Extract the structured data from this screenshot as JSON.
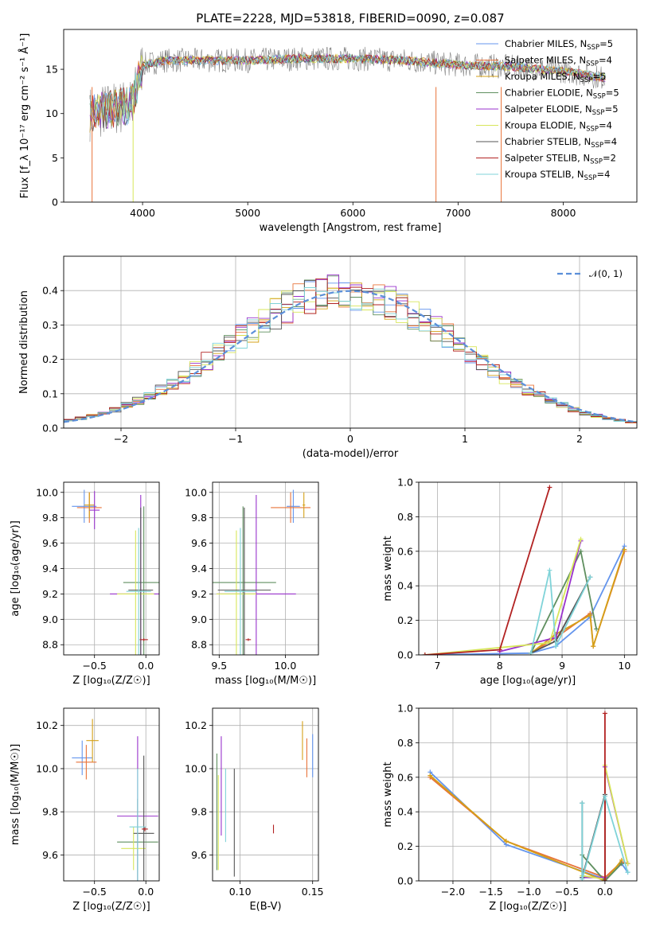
{
  "title": "PLATE=2228, MJD=53818, FIBERID=0090, z=0.087",
  "colors": {
    "Chabrier MILES": "#6495ed",
    "Salpeter MILES": "#e8733a",
    "Kroupa MILES": "#d4a017",
    "Chabrier ELODIE": "#5f8f5f",
    "Salpeter ELODIE": "#9932cc",
    "Kroupa ELODIE": "#d7e65a",
    "Chabrier STELIB": "#555555",
    "Salpeter STELIB": "#b22222",
    "Kroupa STELIB": "#7fd3d8",
    "observed": "#808080",
    "normal": "#5b8fd9"
  },
  "chart_data": [
    {
      "id": "spectrum",
      "type": "line",
      "title": "PLATE=2228, MJD=53818, FIBERID=0090, z=0.087",
      "xlabel": "wavelength [Angstrom, rest frame]",
      "ylabel": "Flux [f_λ 10⁻¹⁷ erg cm⁻² s⁻¹ Å⁻¹]",
      "xlim": [
        3250,
        8700
      ],
      "ylim": [
        0,
        19.5
      ],
      "xticks": [
        4000,
        5000,
        6000,
        7000,
        8000
      ],
      "yticks": [
        0,
        5,
        10,
        15
      ],
      "legend_position": "top-right",
      "legend": [
        {
          "base": "Chabrier MILES, N",
          "sub": "SSP",
          "tail": "=5"
        },
        {
          "base": "Salpeter MILES, N",
          "sub": "SSP",
          "tail": "=4"
        },
        {
          "base": "Kroupa MILES, N",
          "sub": "SSP",
          "tail": "=5"
        },
        {
          "base": "Chabrier ELODIE, N",
          "sub": "SSP",
          "tail": "=5"
        },
        {
          "base": "Salpeter ELODIE, N",
          "sub": "SSP",
          "tail": "=5"
        },
        {
          "base": "Kroupa ELODIE, N",
          "sub": "SSP",
          "tail": "=4"
        },
        {
          "base": "Chabrier STELIB, N",
          "sub": "SSP",
          "tail": "=4"
        },
        {
          "base": "Salpeter STELIB, N",
          "sub": "SSP",
          "tail": "=2"
        },
        {
          "base": "Kroupa STELIB, N",
          "sub": "SSP",
          "tail": "=4"
        }
      ],
      "continuum_approx": [
        [
          3500,
          10
        ],
        [
          3700,
          10.5
        ],
        [
          3900,
          11
        ],
        [
          4000,
          15.5
        ],
        [
          4200,
          16
        ],
        [
          4500,
          16
        ],
        [
          5000,
          16
        ],
        [
          5500,
          16.2
        ],
        [
          6000,
          16.2
        ],
        [
          6500,
          16
        ],
        [
          7000,
          15.5
        ],
        [
          7500,
          15.3
        ],
        [
          8000,
          14.8
        ],
        [
          8400,
          14
        ]
      ]
    },
    {
      "id": "residuals",
      "type": "line",
      "xlabel": "(data-model)/error",
      "ylabel": "Normed distribution",
      "xlim": [
        -2.5,
        2.5
      ],
      "ylim": [
        0,
        0.5
      ],
      "xticks": [
        -2,
        -1,
        0,
        1,
        2
      ],
      "yticks": [
        0.0,
        0.1,
        0.2,
        0.3,
        0.4
      ],
      "normal_label": "𝒩(0, 1)",
      "legend_position": "top-right"
    },
    {
      "id": "age_vs_Z",
      "type": "scatter",
      "xlabel": "Z [log₁₀(Z/Z☉)]",
      "ylabel": "age  [log₁₀(age/yr)]",
      "xlim": [
        -0.8,
        0.13
      ],
      "ylim": [
        8.72,
        10.08
      ],
      "xticks": [
        -0.5,
        0.0
      ],
      "yticks": [
        8.8,
        9.0,
        9.2,
        9.4,
        9.6,
        9.8,
        10.0
      ],
      "points": [
        {
          "model": "Chabrier MILES",
          "x": -0.6,
          "y": 9.89,
          "xerr": 0.12,
          "yerr": 0.13
        },
        {
          "model": "Salpeter MILES",
          "x": -0.55,
          "y": 9.88,
          "xerr": 0.12,
          "yerr": 0.12
        },
        {
          "model": "Kroupa MILES",
          "x": -0.55,
          "y": 9.9,
          "xerr": 0.05,
          "yerr": 0.1
        },
        {
          "model": "Chabrier ELODIE",
          "x": -0.02,
          "y": 9.29,
          "xerr": 0.2,
          "yerr": 0.6
        },
        {
          "model": "Salpeter ELODIE",
          "x": -0.05,
          "y": 9.2,
          "xerr": 0.3,
          "yerr": 0.78
        },
        {
          "model": "Kroupa ELODIE",
          "x": -0.1,
          "y": 9.2,
          "xerr": 0.18,
          "yerr": 0.5
        },
        {
          "model": "Chabrier STELIB",
          "x": -0.05,
          "y": 9.23,
          "xerr": 0.12,
          "yerr": 0.65
        },
        {
          "model": "Salpeter STELIB",
          "x": -0.02,
          "y": 8.84,
          "xerr": 0.04,
          "yerr": 0.01
        },
        {
          "model": "Kroupa STELIB",
          "x": -0.07,
          "y": 9.22,
          "xerr": 0.12,
          "yerr": 0.5
        },
        {
          "model": "Salpeter ELODIE",
          "x": -0.5,
          "y": 9.86,
          "xerr": 0.05,
          "yerr": 0.15
        }
      ]
    },
    {
      "id": "age_vs_mass",
      "type": "scatter",
      "xlabel": "mass [log₁₀(M/M☉)]",
      "ylabel": "",
      "xlim": [
        9.45,
        10.25
      ],
      "ylim": [
        8.72,
        10.08
      ],
      "xticks": [
        9.5,
        10.0
      ],
      "yticks": [
        8.8,
        9.0,
        9.2,
        9.4,
        9.6,
        9.8,
        10.0
      ],
      "points": [
        {
          "model": "Chabrier MILES",
          "x": 10.06,
          "y": 9.89,
          "xerr": 0.05,
          "yerr": 0.13
        },
        {
          "model": "Salpeter MILES",
          "x": 10.04,
          "y": 9.88,
          "xerr": 0.15,
          "yerr": 0.12
        },
        {
          "model": "Kroupa MILES",
          "x": 10.14,
          "y": 9.9,
          "xerr": 0.01,
          "yerr": 0.1
        },
        {
          "model": "Chabrier ELODIE",
          "x": 9.68,
          "y": 9.29,
          "xerr": 0.25,
          "yerr": 0.6
        },
        {
          "model": "Salpeter ELODIE",
          "x": 9.78,
          "y": 9.2,
          "xerr": 0.3,
          "yerr": 0.78
        },
        {
          "model": "Kroupa ELODIE",
          "x": 9.63,
          "y": 9.2,
          "xerr": 0.15,
          "yerr": 0.5
        },
        {
          "model": "Chabrier STELIB",
          "x": 9.69,
          "y": 9.23,
          "xerr": 0.2,
          "yerr": 0.65
        },
        {
          "model": "Salpeter STELIB",
          "x": 9.72,
          "y": 8.84,
          "xerr": 0.02,
          "yerr": 0.01
        },
        {
          "model": "Kroupa STELIB",
          "x": 9.66,
          "y": 9.22,
          "xerr": 0.12,
          "yerr": 0.5
        }
      ]
    },
    {
      "id": "mass_weight_vs_age",
      "type": "line",
      "xlabel": "age  [log₁₀(age/yr)]",
      "ylabel": "mass weight",
      "xlim": [
        6.7,
        10.2
      ],
      "ylim": [
        0,
        1.0
      ],
      "xticks": [
        7,
        8,
        9,
        10
      ],
      "yticks": [
        0.0,
        0.2,
        0.4,
        0.6,
        0.8,
        1.0
      ],
      "series": [
        {
          "model": "Chabrier MILES",
          "x": [
            6.8,
            8.5,
            8.9,
            9.45,
            10.0
          ],
          "y": [
            0.0,
            0.01,
            0.05,
            0.22,
            0.63
          ]
        },
        {
          "model": "Salpeter MILES",
          "x": [
            8.5,
            8.9,
            9.45,
            9.5,
            10.0
          ],
          "y": [
            0.01,
            0.1,
            0.24,
            0.05,
            0.6
          ]
        },
        {
          "model": "Kroupa MILES",
          "x": [
            8.5,
            8.9,
            9.45,
            9.5,
            10.0
          ],
          "y": [
            0.01,
            0.12,
            0.23,
            0.05,
            0.61
          ]
        },
        {
          "model": "Chabrier ELODIE",
          "x": [
            8.5,
            9.3,
            9.55
          ],
          "y": [
            0.01,
            0.6,
            0.15
          ]
        },
        {
          "model": "Salpeter ELODIE",
          "x": [
            8.0,
            8.9,
            9.3
          ],
          "y": [
            0.02,
            0.1,
            0.66
          ]
        },
        {
          "model": "Kroupa ELODIE",
          "x": [
            6.8,
            8.8,
            9.3
          ],
          "y": [
            0.0,
            0.07,
            0.67
          ]
        },
        {
          "model": "Chabrier STELIB",
          "x": [
            8.5,
            8.9,
            9.45
          ],
          "y": [
            0.01,
            0.08,
            0.45
          ]
        },
        {
          "model": "Salpeter STELIB",
          "x": [
            6.8,
            8.0,
            8.8
          ],
          "y": [
            0.0,
            0.03,
            0.97
          ]
        },
        {
          "model": "Kroupa STELIB",
          "x": [
            8.5,
            8.8,
            8.9,
            9.45
          ],
          "y": [
            0.01,
            0.49,
            0.05,
            0.45
          ]
        }
      ]
    },
    {
      "id": "mass_vs_Z",
      "type": "scatter",
      "xlabel": "Z [log₁₀(Z/Z☉)]",
      "ylabel": "mass [log₁₀(M/M☉)]",
      "xlim": [
        -0.8,
        0.13
      ],
      "ylim": [
        9.48,
        10.28
      ],
      "xticks": [
        -0.5,
        0.0
      ],
      "yticks": [
        9.6,
        9.8,
        10.0,
        10.2
      ],
      "points": [
        {
          "model": "Chabrier MILES",
          "x": -0.62,
          "y": 10.05,
          "xerr": 0.1,
          "yerr": 0.08
        },
        {
          "model": "Salpeter MILES",
          "x": -0.58,
          "y": 10.03,
          "xerr": 0.1,
          "yerr": 0.08
        },
        {
          "model": "Kroupa MILES",
          "x": -0.52,
          "y": 10.13,
          "xerr": 0.06,
          "yerr": 0.1
        },
        {
          "model": "Chabrier ELODIE",
          "x": -0.08,
          "y": 9.66,
          "xerr": 0.2,
          "yerr": 0.2
        },
        {
          "model": "Salpeter ELODIE",
          "x": -0.08,
          "y": 9.78,
          "xerr": 0.2,
          "yerr": 0.37
        },
        {
          "model": "Kroupa ELODIE",
          "x": -0.12,
          "y": 9.63,
          "xerr": 0.12,
          "yerr": 0.1
        },
        {
          "model": "Chabrier STELIB",
          "x": -0.02,
          "y": 9.7,
          "xerr": 0.1,
          "yerr": 0.36
        },
        {
          "model": "Salpeter STELIB",
          "x": -0.01,
          "y": 9.72,
          "xerr": 0.03,
          "yerr": 0.01
        },
        {
          "model": "Kroupa STELIB",
          "x": -0.08,
          "y": 9.73,
          "xerr": 0.08,
          "yerr": 0.27
        }
      ]
    },
    {
      "id": "mass_vs_ebv",
      "type": "scatter",
      "xlabel": "E(B-V)",
      "ylabel": "",
      "xlim": [
        0.081,
        0.154
      ],
      "ylim": [
        9.48,
        10.28
      ],
      "xticks": [
        0.1,
        0.15
      ],
      "yticks": [
        9.6,
        9.8,
        10.0,
        10.2
      ],
      "points": [
        {
          "model": "Chabrier MILES",
          "x": 0.15,
          "y": 10.06,
          "yerr": 0.1
        },
        {
          "model": "Salpeter MILES",
          "x": 0.146,
          "y": 10.05,
          "yerr": 0.09
        },
        {
          "model": "Kroupa MILES",
          "x": 0.143,
          "y": 10.13,
          "yerr": 0.09
        },
        {
          "model": "Chabrier ELODIE",
          "x": 0.084,
          "y": 9.8,
          "yerr": 0.27
        },
        {
          "model": "Salpeter ELODIE",
          "x": 0.087,
          "y": 9.92,
          "yerr": 0.23
        },
        {
          "model": "Kroupa ELODIE",
          "x": 0.085,
          "y": 9.75,
          "yerr": 0.22
        },
        {
          "model": "Chabrier STELIB",
          "x": 0.096,
          "y": 9.75,
          "yerr": 0.25
        },
        {
          "model": "Salpeter STELIB",
          "x": 0.123,
          "y": 9.72,
          "yerr": 0.02
        },
        {
          "model": "Kroupa STELIB",
          "x": 0.09,
          "y": 9.83,
          "yerr": 0.17
        }
      ]
    },
    {
      "id": "mass_weight_vs_Z",
      "type": "line",
      "xlabel": "Z [log₁₀(Z/Z☉)]",
      "ylabel": "mass weight",
      "xlim": [
        -2.45,
        0.42
      ],
      "ylim": [
        0,
        1.0
      ],
      "xticks": [
        -2.0,
        -1.5,
        -1.0,
        -0.5,
        0.0
      ],
      "yticks": [
        0.0,
        0.2,
        0.4,
        0.6,
        0.8,
        1.0
      ],
      "series": [
        {
          "model": "Chabrier MILES",
          "x": [
            -2.3,
            -1.3,
            0.0,
            0.22,
            0.3
          ],
          "y": [
            0.63,
            0.21,
            0.01,
            0.1,
            0.05
          ]
        },
        {
          "model": "Salpeter MILES",
          "x": [
            -2.3,
            -1.3,
            0.0,
            0.22,
            0.3
          ],
          "y": [
            0.6,
            0.23,
            0.02,
            0.11,
            0.1
          ]
        },
        {
          "model": "Kroupa MILES",
          "x": [
            -2.3,
            -1.3,
            0.0,
            0.22
          ],
          "y": [
            0.61,
            0.23,
            0.0,
            0.12
          ]
        },
        {
          "model": "Chabrier ELODIE",
          "x": [
            -0.3,
            0.0,
            0.22
          ],
          "y": [
            0.15,
            0.0,
            0.1
          ]
        },
        {
          "model": "Salpeter ELODIE",
          "x": [
            -0.3,
            0.0,
            0.0,
            0.3
          ],
          "y": [
            0.02,
            0.02,
            0.66,
            0.1
          ]
        },
        {
          "model": "Kroupa ELODIE",
          "x": [
            -0.3,
            0.0,
            0.0,
            0.3
          ],
          "y": [
            0.03,
            0.01,
            0.67,
            0.1
          ]
        },
        {
          "model": "Chabrier STELIB",
          "x": [
            -0.3,
            -0.3,
            0.0,
            0.0
          ],
          "y": [
            0.45,
            0.02,
            0.5,
            0.01
          ]
        },
        {
          "model": "Salpeter STELIB",
          "x": [
            0.0,
            0.0
          ],
          "y": [
            0.0,
            0.97
          ]
        },
        {
          "model": "Kroupa STELIB",
          "x": [
            -0.3,
            -0.3,
            0.0,
            0.3
          ],
          "y": [
            0.45,
            0.01,
            0.49,
            0.05
          ]
        }
      ]
    }
  ]
}
